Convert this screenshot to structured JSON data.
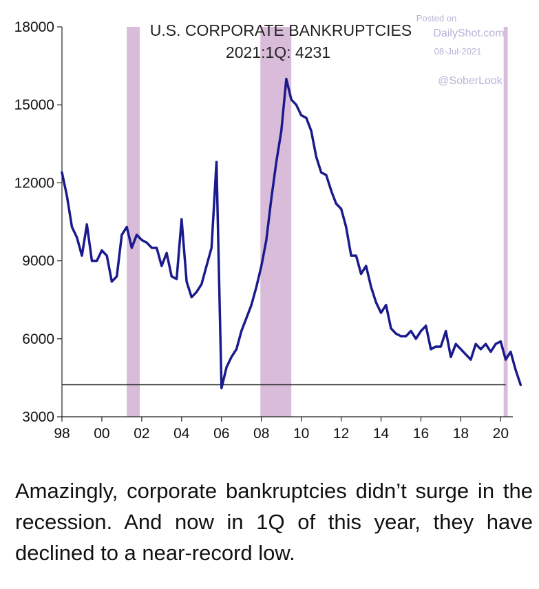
{
  "chart_data": {
    "type": "line",
    "title": "U.S. CORPORATE BANKRUPTCIES",
    "subtitle": "2021:1Q: 4231",
    "xlabel": "",
    "ylabel": "",
    "xlim": [
      1998,
      2021.3
    ],
    "ylim": [
      3000,
      18000
    ],
    "y_ticks": [
      3000,
      6000,
      9000,
      12000,
      15000,
      18000
    ],
    "y_tick_labels": [
      "3000",
      "6000",
      "9000",
      "12000",
      "15000",
      "18000"
    ],
    "x_ticks": [
      1998,
      2000,
      2002,
      2004,
      2006,
      2008,
      2010,
      2012,
      2014,
      2016,
      2018,
      2020
    ],
    "x_tick_labels": [
      "98",
      "00",
      "02",
      "04",
      "06",
      "08",
      "10",
      "12",
      "14",
      "16",
      "18",
      "20"
    ],
    "grid": false,
    "line_color": "#1a1a8c",
    "recession_color": "#d9bcd9",
    "recessions": [
      [
        2001.25,
        2001.9
      ],
      [
        2007.95,
        2009.5
      ],
      [
        2020.15,
        2020.35
      ]
    ],
    "reference_line": {
      "y": 4231,
      "color": "#222222"
    },
    "series": [
      {
        "x": [
          1998.0,
          1998.25,
          1998.5,
          1998.75,
          1999.0,
          1999.25,
          1999.5,
          1999.75,
          2000.0,
          2000.25,
          2000.5,
          2000.75,
          2001.0,
          2001.25,
          2001.5,
          2001.75,
          2002.0,
          2002.25,
          2002.5,
          2002.75,
          2003.0,
          2003.25,
          2003.5,
          2003.75,
          2004.0,
          2004.25,
          2004.5,
          2004.75,
          2005.0,
          2005.25,
          2005.5,
          2005.75,
          2006.0,
          2006.25,
          2006.5,
          2006.75,
          2007.0,
          2007.25,
          2007.5,
          2007.75,
          2008.0,
          2008.25,
          2008.5,
          2008.75,
          2009.0,
          2009.25,
          2009.5,
          2009.75,
          2010.0,
          2010.25,
          2010.5,
          2010.75,
          2011.0,
          2011.25,
          2011.5,
          2011.75,
          2012.0,
          2012.25,
          2012.5,
          2012.75,
          2013.0,
          2013.25,
          2013.5,
          2013.75,
          2014.0,
          2014.25,
          2014.5,
          2014.75,
          2015.0,
          2015.25,
          2015.5,
          2015.75,
          2016.0,
          2016.25,
          2016.5,
          2016.75,
          2017.0,
          2017.25,
          2017.5,
          2017.75,
          2018.0,
          2018.25,
          2018.5,
          2018.75,
          2019.0,
          2019.25,
          2019.5,
          2019.75,
          2020.0,
          2020.25,
          2020.5,
          2020.75,
          2021.0
        ],
        "values": [
          12400,
          11500,
          10300,
          9900,
          9200,
          10400,
          9000,
          9000,
          9400,
          9200,
          8200,
          8400,
          10000,
          10300,
          9500,
          10000,
          9800,
          9700,
          9500,
          9500,
          8800,
          9300,
          8400,
          8300,
          10600,
          8200,
          7600,
          7800,
          8100,
          8800,
          9500,
          12800,
          4100,
          4900,
          5300,
          5600,
          6300,
          6800,
          7300,
          8000,
          8800,
          9800,
          11400,
          12800,
          14000,
          16000,
          15200,
          15000,
          14600,
          14500,
          14000,
          13000,
          12400,
          12300,
          11700,
          11200,
          11000,
          10300,
          9200,
          9200,
          8500,
          8800,
          8000,
          7400,
          7000,
          7300,
          6400,
          6200,
          6100,
          6100,
          6300,
          6000,
          6300,
          6500,
          5600,
          5700,
          5700,
          6300,
          5300,
          5800,
          5600,
          5400,
          5200,
          5800,
          5600,
          5800,
          5500,
          5800,
          5900,
          5200,
          5500,
          4800,
          4231
        ]
      }
    ]
  },
  "watermark": {
    "posted_on": "Posted on",
    "site": "DailyShot.com",
    "date": "08-Jul-2021",
    "handle": "@SoberLook"
  },
  "caption": "Amazingly, corporate bankruptcies didn’t surge in the recession. And now in 1Q of this year, they have declined to a near-record low."
}
